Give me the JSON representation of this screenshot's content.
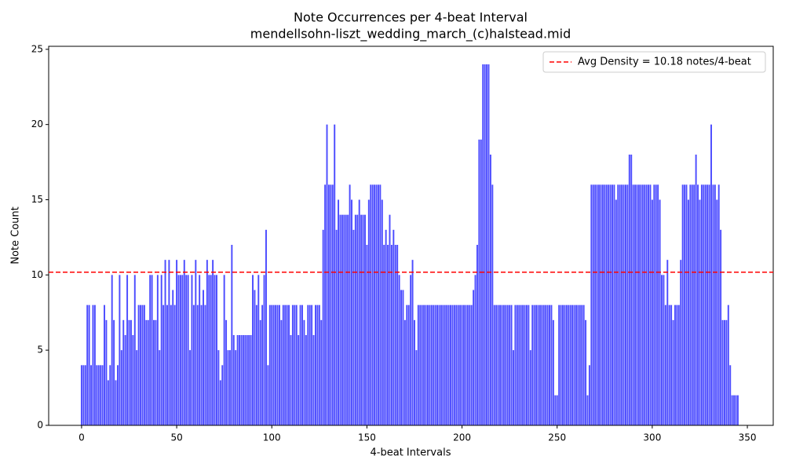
{
  "chart_data": {
    "type": "bar",
    "title": "Note Occurrences per 4-beat Interval",
    "subtitle": "mendellsohn-liszt_wedding_march_(c)halstead.mid",
    "x_label": "4-beat Intervals",
    "y_label": "Note Count",
    "color": "#4c4cff",
    "values": [
      4,
      4,
      4,
      8,
      8,
      4,
      8,
      8,
      4,
      4,
      4,
      4,
      8,
      7,
      3,
      4,
      10,
      7,
      3,
      4,
      10,
      5,
      7,
      6,
      10,
      7,
      7,
      6,
      10,
      5,
      8,
      8,
      8,
      8,
      7,
      7,
      10,
      10,
      7,
      7,
      10,
      5,
      10,
      8,
      11,
      8,
      11,
      8,
      9,
      8,
      11,
      10,
      10,
      10,
      11,
      10,
      10,
      5,
      10,
      8,
      11,
      8,
      10,
      8,
      9,
      8,
      11,
      10,
      10,
      11,
      10,
      10,
      5,
      3,
      4,
      10,
      7,
      5,
      5,
      12,
      6,
      5,
      6,
      6,
      6,
      6,
      6,
      6,
      6,
      6,
      10,
      9,
      8,
      10,
      7,
      8,
      10,
      13,
      4,
      8,
      8,
      8,
      8,
      8,
      8,
      7,
      8,
      8,
      8,
      8,
      6,
      8,
      8,
      8,
      6,
      8,
      8,
      7,
      6,
      8,
      8,
      8,
      6,
      8,
      8,
      8,
      7,
      13,
      16,
      20,
      16,
      16,
      16,
      20,
      13,
      15,
      14,
      14,
      14,
      14,
      14,
      16,
      15,
      13,
      14,
      14,
      15,
      14,
      14,
      14,
      12,
      15,
      16,
      16,
      16,
      16,
      16,
      16,
      15,
      12,
      13,
      12,
      14,
      12,
      13,
      12,
      12,
      10,
      9,
      9,
      7,
      8,
      8,
      10,
      11,
      7,
      5,
      8,
      8,
      8,
      8,
      8,
      8,
      8,
      8,
      8,
      8,
      8,
      8,
      8,
      8,
      8,
      8,
      8,
      8,
      8,
      8,
      8,
      8,
      8,
      8,
      8,
      8,
      8,
      8,
      8,
      9,
      10,
      12,
      19,
      19,
      24,
      24,
      24,
      24,
      18,
      16,
      8,
      8,
      8,
      8,
      8,
      8,
      8,
      8,
      8,
      8,
      5,
      8,
      8,
      8,
      8,
      8,
      8,
      8,
      8,
      5,
      8,
      8,
      8,
      8,
      8,
      8,
      8,
      8,
      8,
      8,
      8,
      7,
      2,
      2,
      8,
      8,
      8,
      8,
      8,
      8,
      8,
      8,
      8,
      8,
      8,
      8,
      8,
      8,
      7,
      2,
      4,
      16,
      16,
      16,
      16,
      16,
      16,
      16,
      16,
      16,
      16,
      16,
      16,
      16,
      15,
      16,
      16,
      16,
      16,
      16,
      16,
      18,
      18,
      16,
      16,
      16,
      16,
      16,
      16,
      16,
      16,
      16,
      16,
      15,
      16,
      16,
      16,
      15,
      10,
      10,
      8,
      11,
      8,
      8,
      7,
      8,
      8,
      8,
      11,
      16,
      16,
      16,
      15,
      16,
      16,
      16,
      18,
      16,
      15,
      16,
      16,
      16,
      16,
      16,
      20,
      16,
      16,
      15,
      16,
      13,
      7,
      7,
      7,
      8,
      4,
      2,
      2,
      2,
      2
    ],
    "avg_value": 10.18,
    "avg_label": "Avg Density = 10.18 notes/4-beat",
    "avg_color": "#ff0000",
    "legend": "upper right",
    "xlim": [
      -17.3,
      363.6
    ],
    "xticks": [
      0,
      50,
      100,
      150,
      200,
      250,
      300,
      350
    ],
    "ylim": [
      0,
      25.2
    ],
    "yticks": [
      0,
      5,
      10,
      15,
      20,
      25
    ]
  }
}
